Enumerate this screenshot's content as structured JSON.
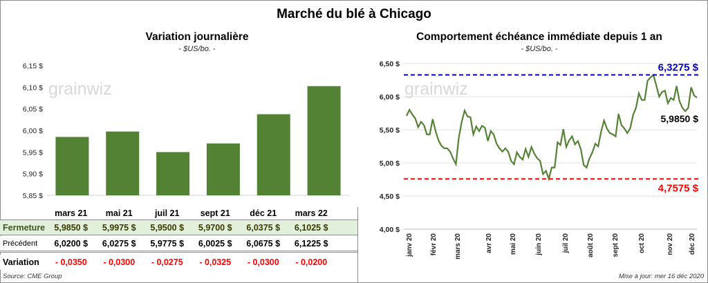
{
  "title": "Marché du blé à Chicago",
  "chart_data": [
    {
      "type": "bar",
      "title": "Variation journalière",
      "subtitle": "- $US/bo. -",
      "categories": [
        "mars 21",
        "mai 21",
        "juil 21",
        "sept 21",
        "déc 21",
        "mars 22"
      ],
      "values": [
        5.985,
        5.9975,
        5.95,
        5.97,
        6.0375,
        6.1025
      ],
      "ylim": [
        5.85,
        6.15
      ],
      "yticks": [
        "6,15 $",
        "6,10 $",
        "6,05 $",
        "6,00 $",
        "5,95 $",
        "5,90 $",
        "5,85 $"
      ],
      "bar_color": "#548235"
    },
    {
      "type": "line",
      "title": "Comportement  échéance immédiate depuis 1 an",
      "subtitle": "- $US/bo. -",
      "ylim": [
        4.0,
        6.5
      ],
      "yticks": [
        "6,50 $",
        "6,00 $",
        "5,50 $",
        "5,00 $",
        "4,50 $",
        "4,00 $"
      ],
      "xticks": [
        "janv 20",
        "févr 20",
        "mars 20",
        "avr 20",
        "mai 20",
        "juin 20",
        "juil 20",
        "août 20",
        "sept 20",
        "oct 20",
        "nov 20",
        "déc 20"
      ],
      "values": [
        5.71,
        5.8,
        5.73,
        5.67,
        5.54,
        5.62,
        5.57,
        5.43,
        5.43,
        5.66,
        5.48,
        5.34,
        5.26,
        5.22,
        5.22,
        5.17,
        5.07,
        4.98,
        5.38,
        5.62,
        5.79,
        5.7,
        5.69,
        5.43,
        5.55,
        5.48,
        5.56,
        5.53,
        5.33,
        5.48,
        5.43,
        5.29,
        5.22,
        5.17,
        5.22,
        5.17,
        5.03,
        4.98,
        5.16,
        5.09,
        5.05,
        5.21,
        5.09,
        5.24,
        5.14,
        5.07,
        5.03,
        4.83,
        4.88,
        4.76,
        4.93,
        4.93,
        5.31,
        5.27,
        5.51,
        5.24,
        5.34,
        5.4,
        5.28,
        5.33,
        5.21,
        4.97,
        4.93,
        5.07,
        5.16,
        5.29,
        5.25,
        5.47,
        5.64,
        5.52,
        5.45,
        5.43,
        5.4,
        5.74,
        5.57,
        5.52,
        5.45,
        5.52,
        5.72,
        5.83,
        6.05,
        5.95,
        5.95,
        6.24,
        6.29,
        6.3275,
        6.17,
        6.0,
        6.07,
        6.09,
        5.9,
        5.98,
        5.95,
        6.16,
        5.93,
        5.83,
        5.78,
        5.83,
        6.14,
        6.02,
        5.985
      ],
      "line_color": "#548235",
      "high": {
        "value": 6.3275,
        "label": "6,3275  $",
        "color": "#0000c0"
      },
      "low": {
        "value": 4.7575,
        "label": "4,7575  $",
        "color": "#ff0000"
      },
      "last_label": "5,9850 $"
    }
  ],
  "watermark": "grainwiz",
  "table": {
    "rows": [
      {
        "label": "Fermeture",
        "values": [
          "5,9850  $",
          "5,9975  $",
          "5,9500  $",
          "5,9700  $",
          "6,0375  $",
          "6,1025  $"
        ]
      },
      {
        "label": "Précédent",
        "values": [
          "6,0200  $",
          "6,0275  $",
          "5,9775  $",
          "6,0025  $",
          "6,0675  $",
          "6,1225  $"
        ]
      },
      {
        "label": "Variation",
        "values": [
          "- 0,0350",
          "- 0,0300",
          "- 0,0275",
          "- 0,0325",
          "- 0,0300",
          "- 0,0200"
        ]
      }
    ]
  },
  "source": "Source: CME Group",
  "updated": "Mise à jour: mer 16 déc 2020"
}
